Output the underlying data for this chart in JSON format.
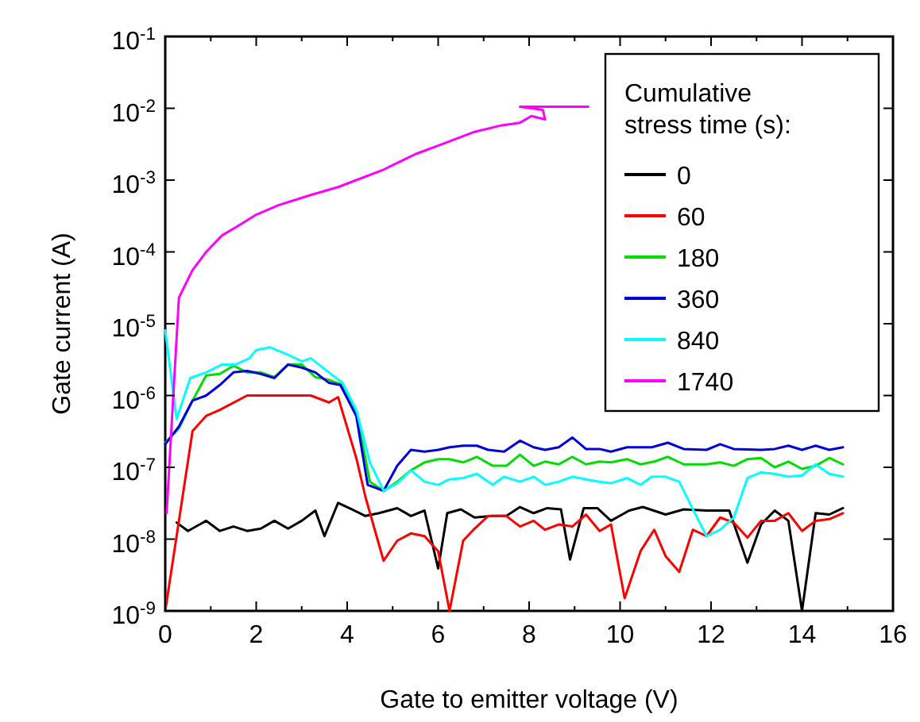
{
  "chart_data": {
    "type": "line",
    "xlabel": "Gate to emitter voltage (V)",
    "ylabel": "Gate current (A)",
    "legend_title": "Cumulative stress time (s):",
    "legend": "top right",
    "log": "y",
    "grid": false,
    "line_style": "solid",
    "marker": "none",
    "xlim": [
      0,
      16
    ],
    "xticks": [
      0,
      2,
      4,
      6,
      8,
      10,
      12,
      14,
      16
    ],
    "ylim": [
      1e-09,
      0.1
    ],
    "yticks": [
      {
        "value": 1e-09,
        "label": "10$^{-9}$"
      },
      {
        "value": 1e-08,
        "label": "10$^{-8}$"
      },
      {
        "value": 1e-07,
        "label": "10$^{-7}$"
      },
      {
        "value": 1e-06,
        "label": "10$^{-6}$"
      },
      {
        "value": 1e-05,
        "label": "10$^{-5}$"
      },
      {
        "value": 0.0001,
        "label": "10$^{-4}$"
      },
      {
        "value": 0.001,
        "label": "10$^{-3}$"
      },
      {
        "value": 0.01,
        "label": "10$^{-2}$"
      },
      {
        "value": 0.1,
        "label": "10$^{-1}$"
      }
    ],
    "series": [
      {
        "name": "0",
        "color": "#000000",
        "x": [
          0.25,
          0.5,
          0.9,
          1.2,
          1.5,
          1.8,
          2.1,
          2.4,
          2.7,
          3.0,
          3.3,
          3.5,
          3.8,
          4.1,
          4.4,
          4.7,
          5.1,
          5.4,
          5.7,
          6.0,
          6.2,
          6.5,
          6.8,
          7.2,
          7.5,
          7.8,
          8.1,
          8.4,
          8.7,
          8.9,
          9.2,
          9.5,
          9.8,
          10.2,
          10.5,
          11.0,
          11.4,
          11.9,
          12.4,
          12.8,
          13.1,
          13.4,
          13.7,
          14.0,
          14.3,
          14.6,
          14.9
        ],
        "values": [
          1.7e-08,
          1.3e-08,
          1.8e-08,
          1.3e-08,
          1.5e-08,
          1.3e-08,
          1.4e-08,
          1.8e-08,
          1.4e-08,
          1.8e-08,
          2.5e-08,
          1.1e-08,
          3.2e-08,
          2.6e-08,
          2.1e-08,
          2.3e-08,
          2.7e-08,
          2.1e-08,
          2.5e-08,
          3.9e-09,
          2.3e-08,
          2.6e-08,
          2e-08,
          2.1e-08,
          2.1e-08,
          2.8e-08,
          2.3e-08,
          2.7e-08,
          2.6e-08,
          5.2e-09,
          2.7e-08,
          2.7e-08,
          1.8e-08,
          2.5e-08,
          2.8e-08,
          2.2e-08,
          2.6e-08,
          2.5e-08,
          2.5e-08,
          4.7e-09,
          1.6e-08,
          2.5e-08,
          1.8e-08,
          1e-09,
          2.3e-08,
          2.2e-08,
          2.7e-08
        ]
      },
      {
        "name": "60",
        "color": "#ff0000",
        "x": [
          0,
          0.6,
          0.9,
          1.2,
          1.8,
          3.2,
          3.6,
          3.8,
          4.2,
          4.4,
          4.8,
          5.1,
          5.4,
          5.7,
          6.0,
          6.25,
          6.55,
          6.8,
          7.1,
          7.5,
          7.8,
          8.1,
          8.35,
          8.65,
          8.95,
          9.25,
          9.55,
          9.8,
          10.1,
          10.45,
          10.75,
          11.0,
          11.3,
          11.6,
          11.9,
          12.2,
          12.5,
          12.8,
          13.1,
          13.4,
          13.7,
          14.0,
          14.3,
          14.6,
          14.9
        ],
        "values": [
          1e-09,
          3.2e-07,
          5.2e-07,
          6.3e-07,
          1e-06,
          1e-06,
          8e-07,
          9.5e-07,
          1.35e-07,
          3.9e-08,
          5e-09,
          9.5e-09,
          1.2e-08,
          1.1e-08,
          6.8e-09,
          1e-09,
          9.5e-09,
          1.4e-08,
          2.1e-08,
          2.1e-08,
          1.5e-08,
          1.8e-08,
          1.35e-08,
          1.6e-08,
          1.5e-08,
          2.2e-08,
          1.3e-08,
          1.6e-08,
          1.5e-09,
          6.8e-09,
          1.35e-08,
          5.8e-09,
          3.5e-09,
          1.35e-08,
          1.1e-08,
          2e-08,
          1.7e-08,
          1.05e-08,
          1.8e-08,
          1.8e-08,
          2.3e-08,
          1.3e-08,
          1.8e-08,
          1.9e-08,
          2.3e-08
        ]
      },
      {
        "name": "180",
        "color": "#00dd00",
        "x": [
          0,
          0.3,
          0.6,
          0.9,
          1.2,
          1.5,
          1.8,
          2.1,
          2.4,
          2.7,
          3.0,
          3.3,
          3.6,
          3.9,
          4.2,
          4.5,
          4.8,
          5.1,
          5.4,
          5.7,
          6.0,
          6.25,
          6.55,
          6.85,
          7.2,
          7.5,
          7.8,
          8.1,
          8.35,
          8.65,
          8.95,
          9.25,
          9.55,
          9.8,
          10.15,
          10.45,
          10.75,
          11.05,
          11.4,
          11.9,
          12.2,
          12.5,
          12.8,
          13.1,
          13.4,
          13.7,
          14.0,
          14.3,
          14.6,
          14.9
        ],
        "values": [
          2.2e-07,
          3.5e-07,
          8.5e-07,
          1.9e-06,
          2e-06,
          2.6e-06,
          2.1e-06,
          2.1e-06,
          1.8e-06,
          2.7e-06,
          2.7e-06,
          1.8e-06,
          1.65e-06,
          1.4e-06,
          5.8e-07,
          6.3e-08,
          4.7e-08,
          6.3e-08,
          9.1e-08,
          1.17e-07,
          1.3e-07,
          1.3e-07,
          1.17e-07,
          1.4e-07,
          1.05e-07,
          1.05e-07,
          1.5e-07,
          1.05e-07,
          1.2e-07,
          1.1e-07,
          1.4e-07,
          1.1e-07,
          1.2e-07,
          1.17e-07,
          1.3e-07,
          1.1e-07,
          1.2e-07,
          1.4e-07,
          1.1e-07,
          1.1e-07,
          1.17e-07,
          1.05e-07,
          1.3e-07,
          1.35e-07,
          1e-07,
          1.2e-07,
          9.5e-08,
          1.05e-07,
          1.35e-07,
          1.1e-07
        ]
      },
      {
        "name": "360",
        "color": "#0000dd",
        "x": [
          0,
          0.3,
          0.6,
          0.9,
          1.2,
          1.5,
          1.8,
          2.1,
          2.4,
          2.7,
          3.0,
          3.3,
          3.6,
          3.85,
          4.2,
          4.45,
          4.8,
          5.1,
          5.4,
          5.7,
          6.0,
          6.25,
          6.55,
          6.85,
          7.1,
          7.45,
          7.8,
          8.1,
          8.35,
          8.65,
          8.95,
          9.25,
          9.55,
          9.8,
          10.15,
          10.7,
          11.05,
          11.4,
          11.9,
          12.2,
          12.5,
          13.1,
          13.4,
          13.7,
          14.0,
          14.3,
          14.6,
          14.9
        ],
        "values": [
          2.1e-07,
          3.7e-07,
          8.5e-07,
          1e-06,
          1.4e-06,
          2.1e-06,
          2.2e-06,
          2e-06,
          1.75e-06,
          2.7e-06,
          2.45e-06,
          2.1e-06,
          1.5e-06,
          1.4e-06,
          5.2e-07,
          5.7e-08,
          4.7e-08,
          1.05e-07,
          1.75e-07,
          1.65e-07,
          1.75e-07,
          1.9e-07,
          2e-07,
          2e-07,
          1.75e-07,
          1.65e-07,
          2.35e-07,
          1.9e-07,
          1.75e-07,
          1.9e-07,
          2.6e-07,
          1.8e-07,
          1.8e-07,
          1.65e-07,
          1.9e-07,
          1.9e-07,
          2.2e-07,
          1.8e-07,
          1.75e-07,
          2.1e-07,
          1.8e-07,
          1.75e-07,
          1.8e-07,
          2e-07,
          1.75e-07,
          2e-07,
          1.75e-07,
          1.9e-07
        ]
      },
      {
        "name": "840",
        "color": "#00ffff",
        "x": [
          0,
          0.25,
          0.55,
          0.9,
          1.25,
          1.55,
          1.85,
          2.0,
          2.3,
          2.7,
          3.0,
          3.2,
          3.6,
          3.9,
          4.2,
          4.5,
          4.8,
          5.1,
          5.4,
          5.7,
          6.0,
          6.25,
          6.55,
          6.85,
          7.2,
          7.45,
          7.8,
          8.1,
          8.35,
          8.65,
          8.95,
          9.25,
          9.55,
          9.8,
          10.15,
          10.45,
          10.7,
          11.0,
          11.3,
          11.6,
          11.9,
          12.2,
          12.5,
          12.8,
          13.1,
          13.4,
          13.7,
          14.0,
          14.3,
          14.6,
          14.9
        ],
        "values": [
          8.1e-06,
          4.7e-07,
          1.75e-06,
          2.1e-06,
          2.7e-06,
          2.7e-06,
          3.3e-06,
          4.3e-06,
          4.7e-06,
          3.7e-06,
          3e-06,
          3.3e-06,
          2.1e-06,
          1.5e-06,
          6.3e-07,
          1.17e-07,
          4.7e-08,
          6e-08,
          9.1e-08,
          6.3e-08,
          5.7e-08,
          6.8e-08,
          7.1e-08,
          8.1e-08,
          5.7e-08,
          7.4e-08,
          6.3e-08,
          7.4e-08,
          5.7e-08,
          6.3e-08,
          7.4e-08,
          6.8e-08,
          6.3e-08,
          6e-08,
          7.1e-08,
          5.7e-08,
          7.4e-08,
          7.4e-08,
          6.3e-08,
          2.6e-08,
          1.1e-08,
          1.35e-08,
          2e-08,
          7.1e-08,
          8.5e-08,
          8.1e-08,
          7.4e-08,
          7.7e-08,
          1.1e-07,
          8.1e-08,
          7.4e-08
        ]
      },
      {
        "name": "1740",
        "color": "#ff00ff",
        "x": [
          0.03,
          0.3,
          0.6,
          0.9,
          1.25,
          1.6,
          2.0,
          2.5,
          3.2,
          3.8,
          4.2,
          4.8,
          5.5,
          6.1,
          6.8,
          7.4,
          7.8,
          8.05,
          8.35,
          8.3,
          7.8,
          9.3
        ],
        "values": [
          2.3e-08,
          2.3e-05,
          5.6e-05,
          0.0001,
          0.00017,
          0.00023,
          0.00033,
          0.00045,
          0.00062,
          0.0008,
          0.001,
          0.0014,
          0.0023,
          0.0032,
          0.0047,
          0.0058,
          0.0063,
          0.0078,
          0.007,
          0.0095,
          0.0105,
          0.0105
        ]
      }
    ]
  }
}
